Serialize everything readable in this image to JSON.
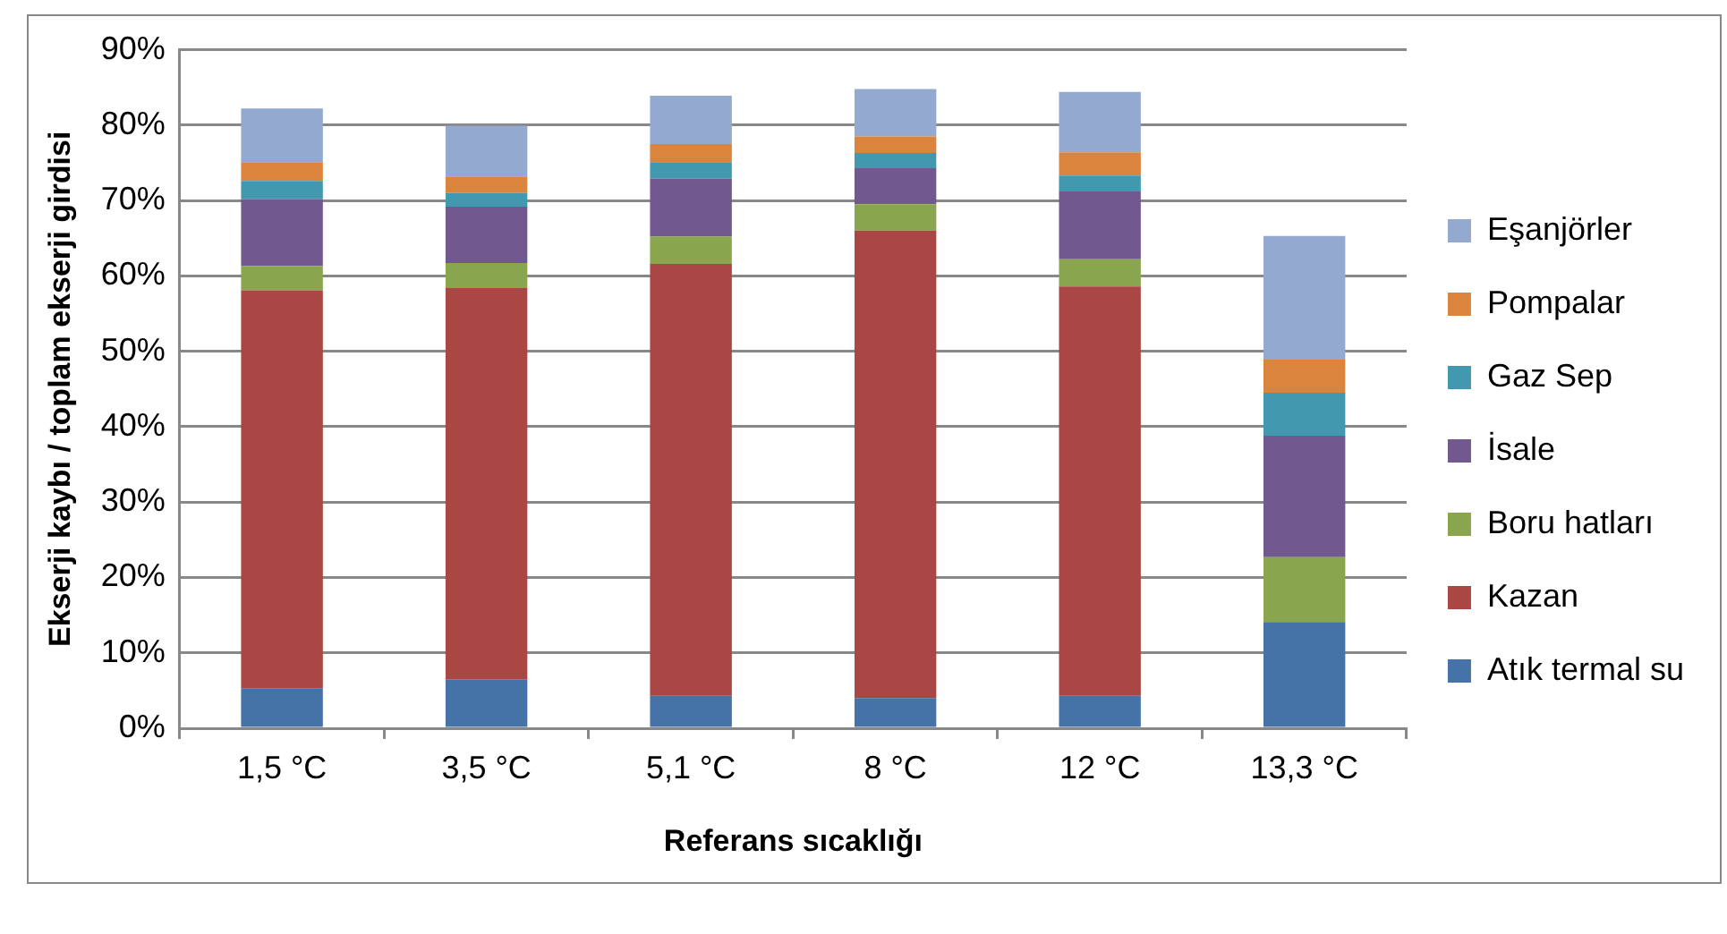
{
  "chart_data": {
    "type": "bar",
    "stacked": true,
    "xlabel": "Referans sıcaklığı",
    "ylabel": "Ekserji kaybı / toplam ekserji girdisi",
    "categories": [
      "1,5 °C",
      "3,5 °C",
      "5,1 °C",
      "8 °C",
      "12 °C",
      "13,3 °C"
    ],
    "series": [
      {
        "name": "Atık termal su",
        "color": "#4572a7",
        "values": [
          5.3,
          6.5,
          4.3,
          4.0,
          4.3,
          14.1
        ]
      },
      {
        "name": "Kazan",
        "color": "#aa4643",
        "values": [
          52.8,
          51.9,
          57.3,
          62.0,
          54.3,
          0
        ]
      },
      {
        "name": "Boru hatları",
        "color": "#89a54e",
        "values": [
          3.2,
          3.3,
          3.6,
          3.5,
          3.6,
          8.6
        ]
      },
      {
        "name": "İsale",
        "color": "#71588f",
        "values": [
          8.9,
          7.5,
          7.7,
          4.8,
          9.0,
          16.1
        ]
      },
      {
        "name": "Gaz Sep",
        "color": "#4198af",
        "values": [
          2.4,
          1.8,
          2.2,
          2.0,
          2.1,
          5.7
        ]
      },
      {
        "name": "Pompalar",
        "color": "#db843d",
        "values": [
          2.5,
          2.2,
          2.4,
          2.2,
          3.1,
          4.4
        ]
      },
      {
        "name": "Eşanjörler",
        "color": "#93a9cf",
        "values": [
          7.1,
          6.7,
          6.4,
          6.3,
          8.0,
          16.4
        ]
      }
    ],
    "ylim": [
      0,
      90
    ],
    "yticks": [
      {
        "value": 0,
        "label": "0%"
      },
      {
        "value": 10,
        "label": "10%"
      },
      {
        "value": 20,
        "label": "20%"
      },
      {
        "value": 30,
        "label": "30%"
      },
      {
        "value": 40,
        "label": "40%"
      },
      {
        "value": 50,
        "label": "50%"
      },
      {
        "value": 60,
        "label": "60%"
      },
      {
        "value": 70,
        "label": "70%"
      },
      {
        "value": 80,
        "label": "80%"
      },
      {
        "value": 90,
        "label": "90%"
      }
    ],
    "grid": "y",
    "legend": "right"
  }
}
